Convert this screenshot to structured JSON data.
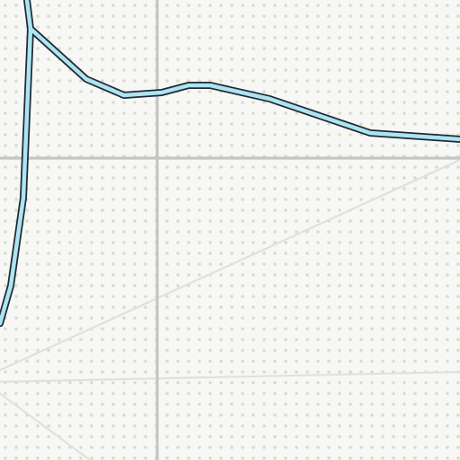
{
  "map": {
    "background_color": "#f7f7f5",
    "pattern_dot_color": "#d9dcc8",
    "major_road_color": "#c5c5c5",
    "minor_road_color": "#e0e0e0",
    "river_fill_color": "#aee3f2",
    "river_casing_color": "#1f2b33"
  }
}
